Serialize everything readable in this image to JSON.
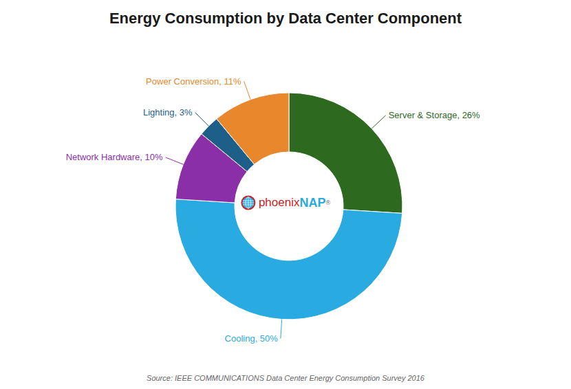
{
  "chart_data": {
    "type": "pie",
    "title": "Energy Consumption by Data Center Component",
    "values": [
      26,
      50,
      10,
      3,
      11
    ],
    "value_labels": [
      "Server & Storage, 26%",
      "Cooling, 50%",
      "Network Hardware, 10%",
      "Lighting, 3%",
      "Power Conversion, 11%"
    ],
    "colors": [
      "#2d6a1f",
      "#29abe2",
      "#8b2fa8",
      "#1e5f8a",
      "#e8872b"
    ],
    "data_labels": true,
    "annotations": [
      {
        "text": "phoenix",
        "color": "#cc2222"
      },
      {
        "text": "NAP",
        "color": "#29abe2"
      },
      {
        "text": "®",
        "color": "#666666"
      },
      {
        "text": "Source: IEEE COMMUNICATIONS Data Center Energy Consumption Survey 2016",
        "color": "#666666"
      }
    ]
  }
}
